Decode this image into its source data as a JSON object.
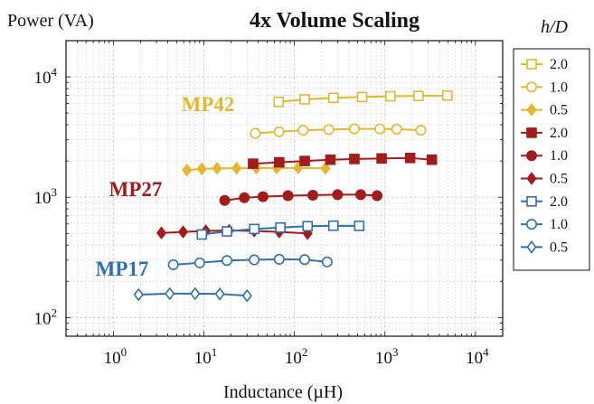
{
  "chart_data": {
    "type": "line",
    "title": "4x Volume Scaling",
    "xlabel": "Inductance (µH)",
    "ylabel": "Power (VA)",
    "legend_title": "h/D",
    "x_scale": "log",
    "y_scale": "log",
    "xlim": [
      0.3,
      20000
    ],
    "ylim": [
      70,
      20000
    ],
    "grid": true,
    "legend_position": "right",
    "xticks": [
      {
        "base": "10",
        "exp": "0"
      },
      {
        "base": "10",
        "exp": "1"
      },
      {
        "base": "10",
        "exp": "2"
      },
      {
        "base": "10",
        "exp": "3"
      },
      {
        "base": "10",
        "exp": "4"
      }
    ],
    "yticks": [
      {
        "base": "10",
        "exp": "2"
      },
      {
        "base": "10",
        "exp": "3"
      },
      {
        "base": "10",
        "exp": "4"
      }
    ],
    "colors": {
      "MP42": "#e3b731",
      "MP27": "#a31c1c",
      "MP17": "#2e6fb5"
    },
    "group_labels": [
      {
        "text": "MP42",
        "group": "MP42"
      },
      {
        "text": "MP27",
        "group": "MP27"
      },
      {
        "text": "MP17",
        "group": "MP17"
      }
    ],
    "series": [
      {
        "name": "2.0",
        "group": "MP42",
        "marker": "square-open",
        "x": [
          67,
          130,
          270,
          560,
          1150,
          2350,
          4900
        ],
        "y": [
          6200,
          6500,
          6700,
          6800,
          6900,
          6950,
          7000
        ]
      },
      {
        "name": "1.0",
        "group": "MP42",
        "marker": "circle-open",
        "x": [
          37,
          68,
          125,
          240,
          460,
          880,
          1350,
          2500
        ],
        "y": [
          3400,
          3500,
          3600,
          3650,
          3700,
          3700,
          3680,
          3600
        ]
      },
      {
        "name": "0.5",
        "group": "MP42",
        "marker": "diamond-filled",
        "x": [
          6.5,
          9.5,
          14,
          23,
          38,
          64,
          110,
          220
        ],
        "y": [
          1680,
          1720,
          1740,
          1740,
          1750,
          1750,
          1750,
          1740
        ]
      },
      {
        "name": "2.0",
        "group": "MP27",
        "marker": "square-filled",
        "x": [
          35,
          68,
          130,
          250,
          460,
          920,
          1900,
          3300
        ],
        "y": [
          1900,
          1950,
          2000,
          2050,
          2080,
          2100,
          2120,
          2050
        ]
      },
      {
        "name": "1.0",
        "group": "MP27",
        "marker": "circle-filled",
        "x": [
          17,
          28,
          45,
          85,
          160,
          300,
          540,
          820
        ],
        "y": [
          940,
          990,
          1010,
          1030,
          1040,
          1050,
          1050,
          1030
        ]
      },
      {
        "name": "0.5",
        "group": "MP27",
        "marker": "diamond-filled",
        "x": [
          3.4,
          5.9,
          10.5,
          19,
          36,
          68,
          140
        ],
        "y": [
          505,
          515,
          525,
          530,
          525,
          515,
          500
        ]
      },
      {
        "name": "2.0",
        "group": "MP17",
        "marker": "square-open",
        "x": [
          9.5,
          18,
          36,
          70,
          140,
          270,
          520
        ],
        "y": [
          490,
          520,
          545,
          560,
          575,
          580,
          578
        ]
      },
      {
        "name": "1.0",
        "group": "MP17",
        "marker": "circle-open",
        "x": [
          4.6,
          9,
          18,
          36,
          68,
          130,
          230
        ],
        "y": [
          275,
          285,
          298,
          302,
          305,
          303,
          290
        ]
      },
      {
        "name": "0.5",
        "group": "MP17",
        "marker": "diamond-open",
        "x": [
          1.9,
          4.2,
          8,
          15,
          30
        ],
        "y": [
          155,
          158,
          158,
          157,
          152
        ]
      }
    ]
  }
}
